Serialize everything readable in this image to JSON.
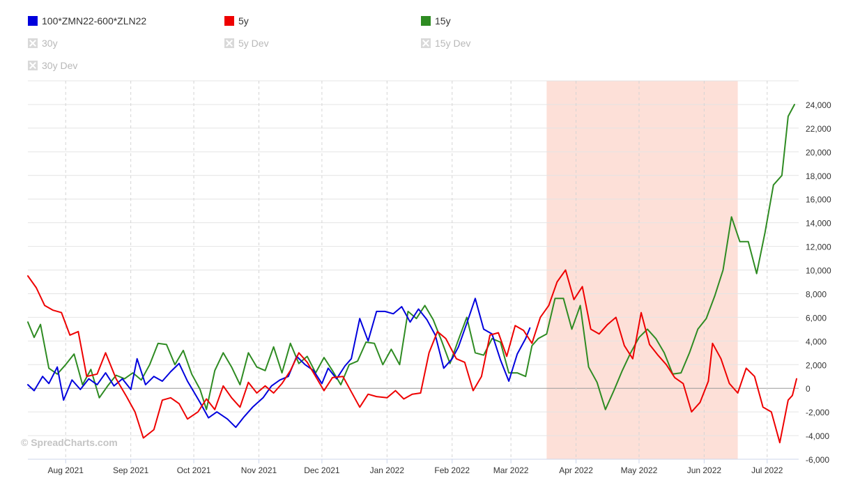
{
  "legend": {
    "items": [
      {
        "label": "100*ZMN22-600*ZLN22",
        "color": "#0000dd",
        "visible": true
      },
      {
        "label": "5y",
        "color": "#ee0000",
        "visible": true
      },
      {
        "label": "15y",
        "color": "#2e8b22",
        "visible": true
      },
      {
        "label": "30y",
        "color": "#999999",
        "visible": false
      },
      {
        "label": "5y Dev",
        "color": "#999999",
        "visible": false
      },
      {
        "label": "15y Dev",
        "color": "#999999",
        "visible": false
      },
      {
        "label": "30y Dev",
        "color": "#999999",
        "visible": false
      }
    ]
  },
  "watermark": "© SpreadCharts.com",
  "chart_data": {
    "type": "line",
    "y_axis": {
      "position": "right",
      "min": -6000,
      "max": 24000,
      "ticks": [
        -6000,
        -4000,
        -2000,
        0,
        2000,
        4000,
        6000,
        8000,
        10000,
        12000,
        14000,
        16000,
        18000,
        20000,
        22000,
        24000
      ],
      "tick_labels": [
        "-6,000",
        "-4,000",
        "-2,000",
        "0",
        "2,000",
        "4,000",
        "6,000",
        "8,000",
        "10,000",
        "12,000",
        "14,000",
        "16,000",
        "18,000",
        "20,000",
        "22,000",
        "24,000"
      ]
    },
    "x_axis": {
      "min": "2021-07-14",
      "max": "2022-07-16",
      "ticks": [
        "2021-08-01",
        "2021-09-01",
        "2021-10-01",
        "2021-11-01",
        "2021-12-01",
        "2022-01-01",
        "2022-02-01",
        "2022-03-01",
        "2022-04-01",
        "2022-05-01",
        "2022-06-01",
        "2022-07-01"
      ],
      "tick_labels": [
        "Aug 2021",
        "Sep 2021",
        "Oct 2021",
        "Nov 2021",
        "Dec 2021",
        "Jan 2022",
        "Feb 2022",
        "Mar 2022",
        "Apr 2022",
        "May 2022",
        "Jun 2022",
        "Jul 2022"
      ]
    },
    "grid": {
      "vertical": "dashed",
      "horizontal": "solid"
    },
    "highlight_band": {
      "from": "2022-03-18",
      "to": "2022-06-17",
      "color": "#fde0d8"
    },
    "series": [
      {
        "name": "100*ZMN22-600*ZLN22",
        "color": "#0000dd",
        "points": [
          [
            "2021-07-14",
            300
          ],
          [
            "2021-07-17",
            -200
          ],
          [
            "2021-07-21",
            1000
          ],
          [
            "2021-07-24",
            400
          ],
          [
            "2021-07-28",
            1800
          ],
          [
            "2021-07-31",
            -1000
          ],
          [
            "2021-08-04",
            700
          ],
          [
            "2021-08-08",
            -100
          ],
          [
            "2021-08-12",
            800
          ],
          [
            "2021-08-16",
            300
          ],
          [
            "2021-08-20",
            1300
          ],
          [
            "2021-08-24",
            200
          ],
          [
            "2021-08-28",
            800
          ],
          [
            "2021-09-01",
            -100
          ],
          [
            "2021-09-04",
            2500
          ],
          [
            "2021-09-08",
            300
          ],
          [
            "2021-09-12",
            1000
          ],
          [
            "2021-09-16",
            600
          ],
          [
            "2021-09-20",
            1400
          ],
          [
            "2021-09-24",
            2100
          ],
          [
            "2021-09-28",
            600
          ],
          [
            "2021-10-01",
            -300
          ],
          [
            "2021-10-04",
            -1200
          ],
          [
            "2021-10-08",
            -2500
          ],
          [
            "2021-10-12",
            -2000
          ],
          [
            "2021-10-17",
            -2600
          ],
          [
            "2021-10-21",
            -3300
          ],
          [
            "2021-10-25",
            -2400
          ],
          [
            "2021-10-29",
            -1600
          ],
          [
            "2021-11-03",
            -800
          ],
          [
            "2021-11-07",
            200
          ],
          [
            "2021-11-11",
            700
          ],
          [
            "2021-11-15",
            1000
          ],
          [
            "2021-11-19",
            2700
          ],
          [
            "2021-11-23",
            2000
          ],
          [
            "2021-11-27",
            1500
          ],
          [
            "2021-12-01",
            400
          ],
          [
            "2021-12-04",
            1700
          ],
          [
            "2021-12-08",
            800
          ],
          [
            "2021-12-12",
            1900
          ],
          [
            "2021-12-15",
            2500
          ],
          [
            "2021-12-19",
            5900
          ],
          [
            "2021-12-23",
            4000
          ],
          [
            "2021-12-27",
            6500
          ],
          [
            "2021-12-31",
            6500
          ],
          [
            "2022-01-04",
            6300
          ],
          [
            "2022-01-08",
            6900
          ],
          [
            "2022-01-12",
            5600
          ],
          [
            "2022-01-16",
            6700
          ],
          [
            "2022-01-20",
            5800
          ],
          [
            "2022-01-24",
            4500
          ],
          [
            "2022-01-28",
            1700
          ],
          [
            "2022-02-01",
            2500
          ],
          [
            "2022-02-04",
            3500
          ],
          [
            "2022-02-08",
            5500
          ],
          [
            "2022-02-12",
            7600
          ],
          [
            "2022-02-16",
            5000
          ],
          [
            "2022-02-20",
            4600
          ],
          [
            "2022-02-24",
            2400
          ],
          [
            "2022-02-28",
            600
          ],
          [
            "2022-03-04",
            2900
          ],
          [
            "2022-03-08",
            4200
          ],
          [
            "2022-03-10",
            5100
          ]
        ]
      },
      {
        "name": "5y",
        "color": "#ee0000",
        "points": [
          [
            "2021-07-14",
            9500
          ],
          [
            "2021-07-18",
            8500
          ],
          [
            "2021-07-22",
            7000
          ],
          [
            "2021-07-26",
            6600
          ],
          [
            "2021-07-30",
            6400
          ],
          [
            "2021-08-03",
            4500
          ],
          [
            "2021-08-07",
            4800
          ],
          [
            "2021-08-11",
            1000
          ],
          [
            "2021-08-16",
            1200
          ],
          [
            "2021-08-20",
            3000
          ],
          [
            "2021-08-25",
            800
          ],
          [
            "2021-08-30",
            -700
          ],
          [
            "2021-09-03",
            -2000
          ],
          [
            "2021-09-07",
            -4200
          ],
          [
            "2021-09-12",
            -3500
          ],
          [
            "2021-09-16",
            -1000
          ],
          [
            "2021-09-20",
            -800
          ],
          [
            "2021-09-24",
            -1300
          ],
          [
            "2021-09-28",
            -2600
          ],
          [
            "2021-10-03",
            -2000
          ],
          [
            "2021-10-07",
            -900
          ],
          [
            "2021-10-11",
            -1800
          ],
          [
            "2021-10-15",
            200
          ],
          [
            "2021-10-19",
            -800
          ],
          [
            "2021-10-23",
            -1600
          ],
          [
            "2021-10-27",
            500
          ],
          [
            "2021-10-31",
            -400
          ],
          [
            "2021-11-04",
            200
          ],
          [
            "2021-11-08",
            -400
          ],
          [
            "2021-11-12",
            400
          ],
          [
            "2021-11-16",
            1500
          ],
          [
            "2021-11-20",
            3000
          ],
          [
            "2021-11-24",
            2200
          ],
          [
            "2021-11-28",
            1000
          ],
          [
            "2021-12-02",
            -200
          ],
          [
            "2021-12-06",
            900
          ],
          [
            "2021-12-11",
            1000
          ],
          [
            "2021-12-15",
            -300
          ],
          [
            "2021-12-19",
            -1600
          ],
          [
            "2021-12-23",
            -500
          ],
          [
            "2021-12-27",
            -700
          ],
          [
            "2022-01-01",
            -800
          ],
          [
            "2022-01-05",
            -200
          ],
          [
            "2022-01-09",
            -900
          ],
          [
            "2022-01-13",
            -500
          ],
          [
            "2022-01-17",
            -400
          ],
          [
            "2022-01-21",
            3000
          ],
          [
            "2022-01-25",
            4800
          ],
          [
            "2022-01-29",
            4200
          ],
          [
            "2022-02-03",
            2500
          ],
          [
            "2022-02-07",
            2200
          ],
          [
            "2022-02-11",
            -200
          ],
          [
            "2022-02-15",
            1000
          ],
          [
            "2022-02-19",
            4500
          ],
          [
            "2022-02-23",
            4700
          ],
          [
            "2022-02-27",
            2700
          ],
          [
            "2022-03-03",
            5300
          ],
          [
            "2022-03-07",
            4900
          ],
          [
            "2022-03-11",
            3800
          ],
          [
            "2022-03-15",
            6000
          ],
          [
            "2022-03-19",
            7000
          ],
          [
            "2022-03-23",
            9000
          ],
          [
            "2022-03-27",
            10000
          ],
          [
            "2022-03-31",
            7500
          ],
          [
            "2022-04-04",
            8600
          ],
          [
            "2022-04-08",
            5000
          ],
          [
            "2022-04-12",
            4600
          ],
          [
            "2022-04-16",
            5400
          ],
          [
            "2022-04-20",
            6000
          ],
          [
            "2022-04-24",
            3600
          ],
          [
            "2022-04-28",
            2500
          ],
          [
            "2022-05-02",
            6400
          ],
          [
            "2022-05-06",
            3700
          ],
          [
            "2022-05-10",
            2800
          ],
          [
            "2022-05-14",
            2000
          ],
          [
            "2022-05-18",
            900
          ],
          [
            "2022-05-22",
            400
          ],
          [
            "2022-05-26",
            -2000
          ],
          [
            "2022-05-30",
            -1200
          ],
          [
            "2022-06-03",
            600
          ],
          [
            "2022-06-05",
            3800
          ],
          [
            "2022-06-09",
            2500
          ],
          [
            "2022-06-13",
            400
          ],
          [
            "2022-06-17",
            -400
          ],
          [
            "2022-06-21",
            1700
          ],
          [
            "2022-06-25",
            1000
          ],
          [
            "2022-06-29",
            -1600
          ],
          [
            "2022-07-03",
            -2000
          ],
          [
            "2022-07-07",
            -4600
          ],
          [
            "2022-07-11",
            -1000
          ],
          [
            "2022-07-13",
            -600
          ],
          [
            "2022-07-15",
            800
          ]
        ]
      },
      {
        "name": "15y",
        "color": "#2e8b22",
        "points": [
          [
            "2021-07-14",
            5600
          ],
          [
            "2021-07-17",
            4300
          ],
          [
            "2021-07-20",
            5400
          ],
          [
            "2021-07-24",
            1700
          ],
          [
            "2021-07-28",
            1200
          ],
          [
            "2021-08-01",
            2000
          ],
          [
            "2021-08-05",
            2900
          ],
          [
            "2021-08-09",
            300
          ],
          [
            "2021-08-13",
            1600
          ],
          [
            "2021-08-17",
            -800
          ],
          [
            "2021-08-21",
            200
          ],
          [
            "2021-08-25",
            1100
          ],
          [
            "2021-08-29",
            800
          ],
          [
            "2021-09-02",
            1300
          ],
          [
            "2021-09-06",
            700
          ],
          [
            "2021-09-10",
            2000
          ],
          [
            "2021-09-14",
            3800
          ],
          [
            "2021-09-18",
            3700
          ],
          [
            "2021-09-22",
            2000
          ],
          [
            "2021-09-26",
            3200
          ],
          [
            "2021-09-30",
            1200
          ],
          [
            "2021-10-04",
            -100
          ],
          [
            "2021-10-07",
            -1800
          ],
          [
            "2021-10-11",
            1500
          ],
          [
            "2021-10-15",
            3000
          ],
          [
            "2021-10-19",
            1800
          ],
          [
            "2021-10-23",
            300
          ],
          [
            "2021-10-27",
            3000
          ],
          [
            "2021-10-31",
            1800
          ],
          [
            "2021-11-04",
            1500
          ],
          [
            "2021-11-08",
            3500
          ],
          [
            "2021-11-12",
            1300
          ],
          [
            "2021-11-16",
            3800
          ],
          [
            "2021-11-20",
            2100
          ],
          [
            "2021-11-24",
            2700
          ],
          [
            "2021-11-28",
            1300
          ],
          [
            "2021-12-02",
            2600
          ],
          [
            "2021-12-06",
            1500
          ],
          [
            "2021-12-10",
            300
          ],
          [
            "2021-12-14",
            2000
          ],
          [
            "2021-12-18",
            2300
          ],
          [
            "2021-12-22",
            3900
          ],
          [
            "2021-12-26",
            3800
          ],
          [
            "2021-12-30",
            2000
          ],
          [
            "2022-01-03",
            3300
          ],
          [
            "2022-01-07",
            2000
          ],
          [
            "2022-01-11",
            6500
          ],
          [
            "2022-01-15",
            5900
          ],
          [
            "2022-01-19",
            7000
          ],
          [
            "2022-01-23",
            5800
          ],
          [
            "2022-01-27",
            4000
          ],
          [
            "2022-01-31",
            2100
          ],
          [
            "2022-02-04",
            4100
          ],
          [
            "2022-02-08",
            6000
          ],
          [
            "2022-02-12",
            3000
          ],
          [
            "2022-02-16",
            2800
          ],
          [
            "2022-02-20",
            4200
          ],
          [
            "2022-02-24",
            3900
          ],
          [
            "2022-02-28",
            1300
          ],
          [
            "2022-03-04",
            1300
          ],
          [
            "2022-03-08",
            1000
          ],
          [
            "2022-03-11",
            3600
          ],
          [
            "2022-03-14",
            4200
          ],
          [
            "2022-03-18",
            4600
          ],
          [
            "2022-03-22",
            7600
          ],
          [
            "2022-03-26",
            7600
          ],
          [
            "2022-03-30",
            5000
          ],
          [
            "2022-04-03",
            7000
          ],
          [
            "2022-04-07",
            1800
          ],
          [
            "2022-04-11",
            500
          ],
          [
            "2022-04-15",
            -1800
          ],
          [
            "2022-04-19",
            -200
          ],
          [
            "2022-04-23",
            1500
          ],
          [
            "2022-04-27",
            3000
          ],
          [
            "2022-05-01",
            4300
          ],
          [
            "2022-05-05",
            5000
          ],
          [
            "2022-05-09",
            4200
          ],
          [
            "2022-05-13",
            3000
          ],
          [
            "2022-05-17",
            1200
          ],
          [
            "2022-05-21",
            1300
          ],
          [
            "2022-05-25",
            3000
          ],
          [
            "2022-05-29",
            5000
          ],
          [
            "2022-06-02",
            5900
          ],
          [
            "2022-06-06",
            7800
          ],
          [
            "2022-06-10",
            10000
          ],
          [
            "2022-06-14",
            14500
          ],
          [
            "2022-06-18",
            12400
          ],
          [
            "2022-06-22",
            12400
          ],
          [
            "2022-06-26",
            9700
          ],
          [
            "2022-06-30",
            13200
          ],
          [
            "2022-07-04",
            17200
          ],
          [
            "2022-07-08",
            18000
          ],
          [
            "2022-07-11",
            23000
          ],
          [
            "2022-07-14",
            24000
          ]
        ]
      }
    ]
  }
}
